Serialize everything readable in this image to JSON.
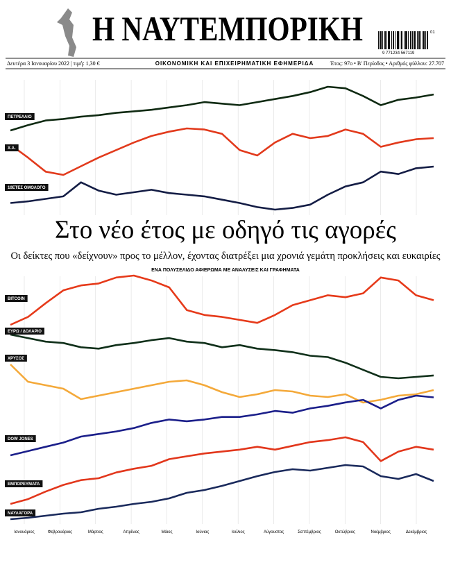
{
  "header": {
    "title": "Η ΝΑΥΤΕΜΠΟΡΙΚΗ",
    "date_price": "Δευτέρα 3 Ιανουαρίου 2022 | τιμή: 1,30 €",
    "tagline": "ΟΙΚΟΝΟΜΙΚΗ ΚΑΙ ΕΠΙΧΕΙΡΗΜΑΤΙΚΗ ΕΦΗΜΕΡΙΔΑ",
    "issue": "Έτος: 97ο • Β' Περίοδος • Αριθμός φύλλου: 27.707"
  },
  "barcode": {
    "digits": "9 771234 567119",
    "issue_code": "01"
  },
  "headline": {
    "title": "Στο νέο έτος με οδηγό τις αγορές",
    "subtitle": "Οι δείκτες που «δείχνουν» προς το μέλλον, έχοντας διατρέξει μια χρονιά γεμάτη προκλήσεις και ευκαιρίες",
    "kicker": "ΕΝΑ ΠΟΛΥΣΕΛΙΔΟ ΑΦΙΕΡΩΜΑ ΜΕ ΑΝΑΛΥΣΕΙΣ ΚΑΙ ΓΡΑΦΗΜΑΤΑ"
  },
  "charts": {
    "top": [
      {
        "name": "ΠΕΤΡΕΛΑΙΟ",
        "color": "#0f2a12",
        "values": [
          15,
          22,
          28,
          30,
          33,
          35,
          38,
          40,
          42,
          45,
          48,
          52,
          50,
          48,
          52,
          56,
          60,
          65,
          72,
          70,
          60,
          48,
          55,
          58,
          62
        ]
      },
      {
        "name": "Χ.Α.",
        "color": "#e23a1c",
        "values": [
          60,
          48,
          35,
          32,
          40,
          48,
          55,
          62,
          68,
          72,
          75,
          74,
          70,
          55,
          50,
          62,
          70,
          66,
          68,
          74,
          70,
          58,
          62,
          65,
          66
        ]
      },
      {
        "name": "10ΕΤΕΣ ΟΜΟΛΟΓΟ",
        "color": "#141d45",
        "values": [
          20,
          22,
          25,
          28,
          45,
          35,
          30,
          33,
          36,
          32,
          30,
          28,
          24,
          20,
          15,
          12,
          14,
          18,
          30,
          40,
          45,
          58,
          55,
          62,
          64
        ]
      }
    ],
    "bottom": [
      {
        "name": "BITCOIN",
        "color": "#e63a1a",
        "values": [
          30,
          38,
          52,
          65,
          70,
          72,
          78,
          80,
          75,
          68,
          45,
          40,
          38,
          35,
          32,
          40,
          50,
          55,
          60,
          58,
          62,
          78,
          75,
          60,
          55
        ]
      },
      {
        "name": "ΕΥΡΩ / ΔΟΛΑΡΙΟ",
        "color": "#10301a",
        "values": [
          80,
          75,
          70,
          68,
          62,
          60,
          65,
          68,
          72,
          75,
          70,
          68,
          62,
          65,
          60,
          58,
          55,
          50,
          48,
          40,
          30,
          20,
          18,
          20,
          22
        ]
      },
      {
        "name": "ΧΡΥΣΟΣ",
        "color": "#f4a93a",
        "values": [
          85,
          60,
          55,
          50,
          35,
          40,
          45,
          50,
          55,
          60,
          62,
          55,
          45,
          38,
          42,
          48,
          46,
          40,
          38,
          42,
          30,
          34,
          40,
          42,
          48
        ]
      },
      {
        "name": "DOW JONES",
        "color": "#1b1f8a",
        "values": [
          10,
          15,
          20,
          25,
          32,
          35,
          38,
          42,
          48,
          52,
          50,
          52,
          55,
          55,
          58,
          62,
          60,
          65,
          68,
          72,
          75,
          65,
          75,
          80,
          78
        ]
      },
      {
        "name": "ΕΜΠΟΡΕΥΜΑΤΑ",
        "color": "#e2371c",
        "values": [
          5,
          10,
          18,
          25,
          30,
          32,
          38,
          42,
          45,
          52,
          55,
          58,
          60,
          62,
          65,
          62,
          66,
          70,
          72,
          75,
          70,
          50,
          60,
          65,
          62
        ]
      },
      {
        "name": "ΝΑΥΛΑΓΟΡΑ",
        "color": "#1a2a5c",
        "values": [
          0,
          2,
          5,
          8,
          10,
          15,
          18,
          22,
          25,
          30,
          38,
          42,
          48,
          55,
          62,
          68,
          72,
          70,
          74,
          78,
          76,
          62,
          58,
          65,
          55
        ]
      }
    ],
    "months": [
      "Ιανουάριος",
      "Φεβρουάριος",
      "Μάρτιος",
      "Απρίλιος",
      "Μάιος",
      "Ιούνιος",
      "Ιούλιος",
      "Αύγουστος",
      "Σεπτέμβριος",
      "Οκτώβριος",
      "Νοέμβριος",
      "Δεκέμβριος"
    ]
  }
}
